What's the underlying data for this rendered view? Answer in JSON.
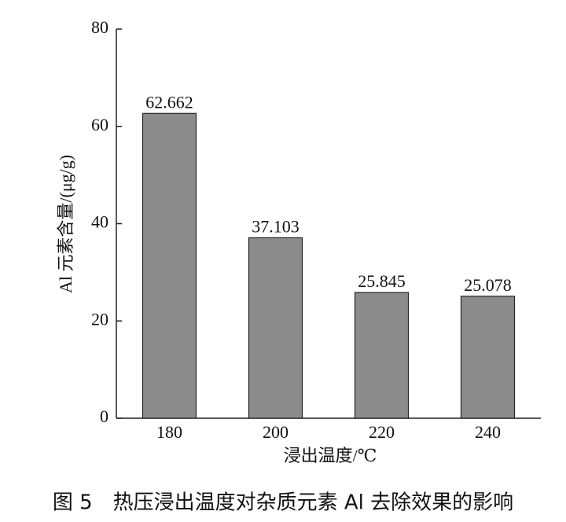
{
  "chart_data": {
    "type": "bar",
    "categories": [
      "180",
      "200",
      "220",
      "240"
    ],
    "values": [
      62.662,
      37.103,
      25.845,
      25.078
    ],
    "color": "#8c8c8c",
    "ylim": [
      0,
      80
    ],
    "yticks": [
      0,
      20,
      40,
      60,
      80
    ],
    "x_label": "浸出温度/℃",
    "y_label": "Al 元素含量/(μg/g)",
    "caption": "图 5　热压浸出温度对杂质元素 Al 去除效果的影响",
    "grid": false
  }
}
